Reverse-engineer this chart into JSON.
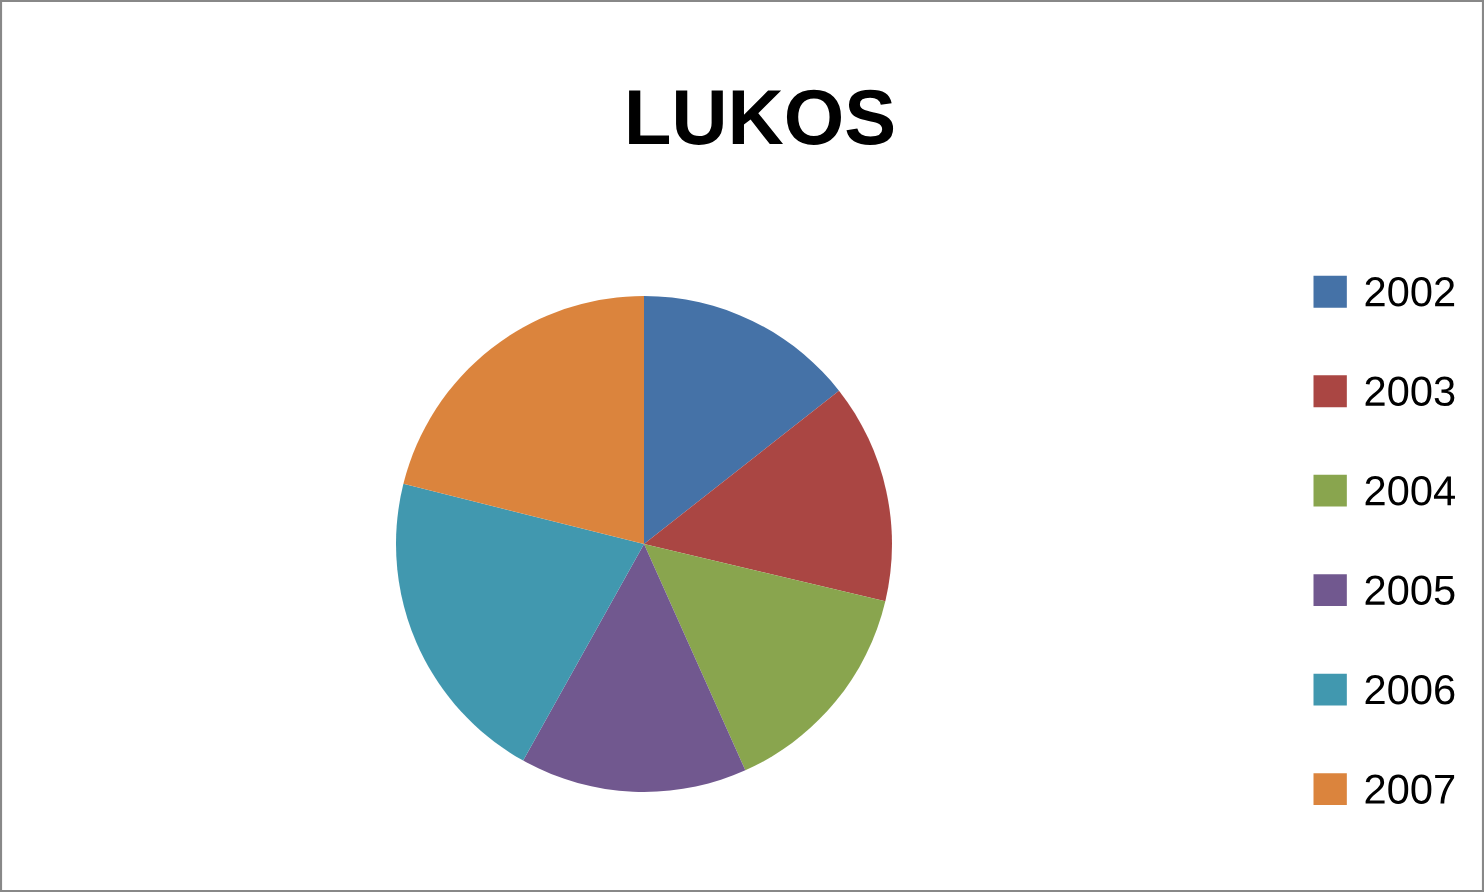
{
  "chart_data": {
    "type": "pie",
    "title": "LUKOS",
    "categories": [
      "2002",
      "2003",
      "2004",
      "2005",
      "2006",
      "2007"
    ],
    "values": [
      14.4,
      14.3,
      14.6,
      14.8,
      20.8,
      21.1
    ],
    "colors": [
      "#4572a7",
      "#aa4643",
      "#89a54e",
      "#71588f",
      "#4198af",
      "#db843d"
    ],
    "legend": "right"
  }
}
